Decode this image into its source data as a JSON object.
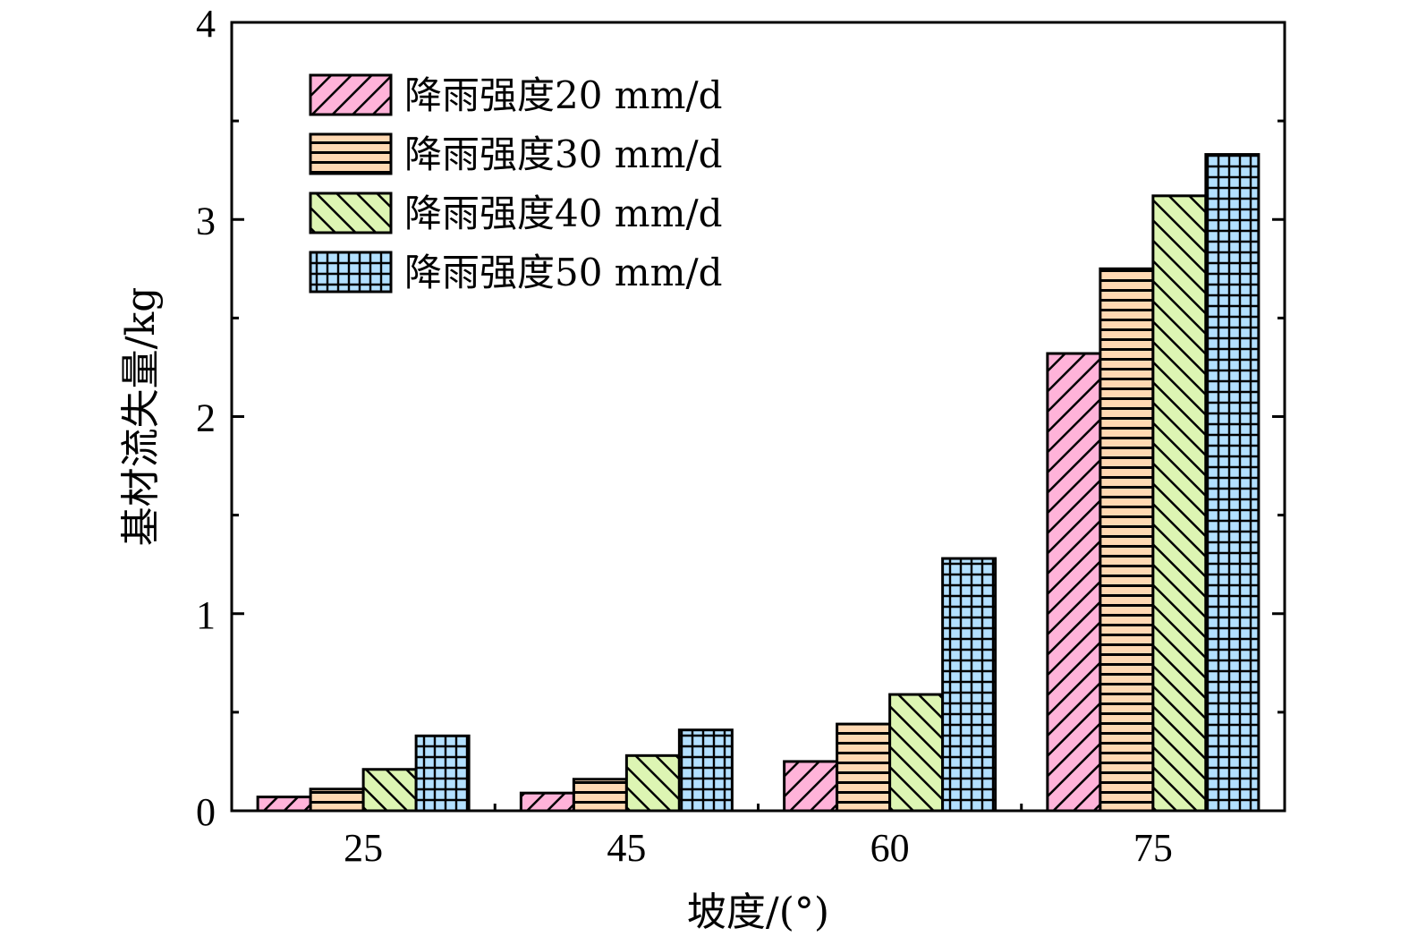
{
  "chart_data": {
    "type": "bar",
    "xlabel": "坡度/(°)",
    "ylabel": "基材流失量/kg",
    "categories": [
      "25",
      "45",
      "60",
      "75"
    ],
    "ylim": [
      0,
      4
    ],
    "yticks": [
      "0",
      "1",
      "2",
      "3",
      "4"
    ],
    "grid": false,
    "legend_position": "top-left",
    "series": [
      {
        "name": "降雨强度20 mm/d",
        "values": [
          0.07,
          0.09,
          0.25,
          2.32
        ],
        "color": "#ffb3d9",
        "pattern": "diagonal-up"
      },
      {
        "name": "降雨强度30 mm/d",
        "values": [
          0.11,
          0.16,
          0.44,
          2.75
        ],
        "color": "#ffd9b3",
        "pattern": "horizontal"
      },
      {
        "name": "降雨强度40 mm/d",
        "values": [
          0.21,
          0.28,
          0.59,
          3.12
        ],
        "color": "#ddf5b3",
        "pattern": "diagonal-down"
      },
      {
        "name": "降雨强度50 mm/d",
        "values": [
          0.38,
          0.41,
          1.28,
          3.33
        ],
        "color": "#b3e0ff",
        "pattern": "grid"
      }
    ]
  }
}
